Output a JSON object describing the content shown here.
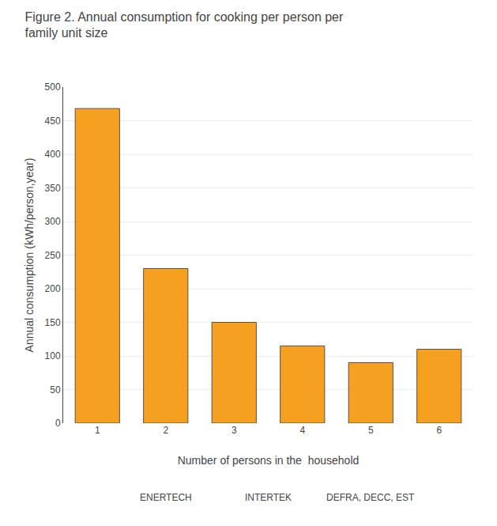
{
  "chart_data": {
    "type": "bar",
    "title": "Figure 2. Annual consumption for cooking per person per\nfamily unit size",
    "categories": [
      1,
      2,
      3,
      4,
      5,
      6
    ],
    "values": [
      468,
      230,
      150,
      115,
      90,
      110
    ],
    "color": "#F5A020",
    "xlabel": "Number of persons in the  household",
    "ylabel": "Annual consumption (kWh/person,year)",
    "ylim": [
      0,
      500
    ],
    "yticks": [
      0,
      50,
      100,
      150,
      200,
      250,
      300,
      350,
      400,
      450,
      500
    ],
    "grid": true,
    "annotations": [
      "ENERTECH",
      "INTERTEK",
      "DEFRA, DECC, EST"
    ]
  }
}
